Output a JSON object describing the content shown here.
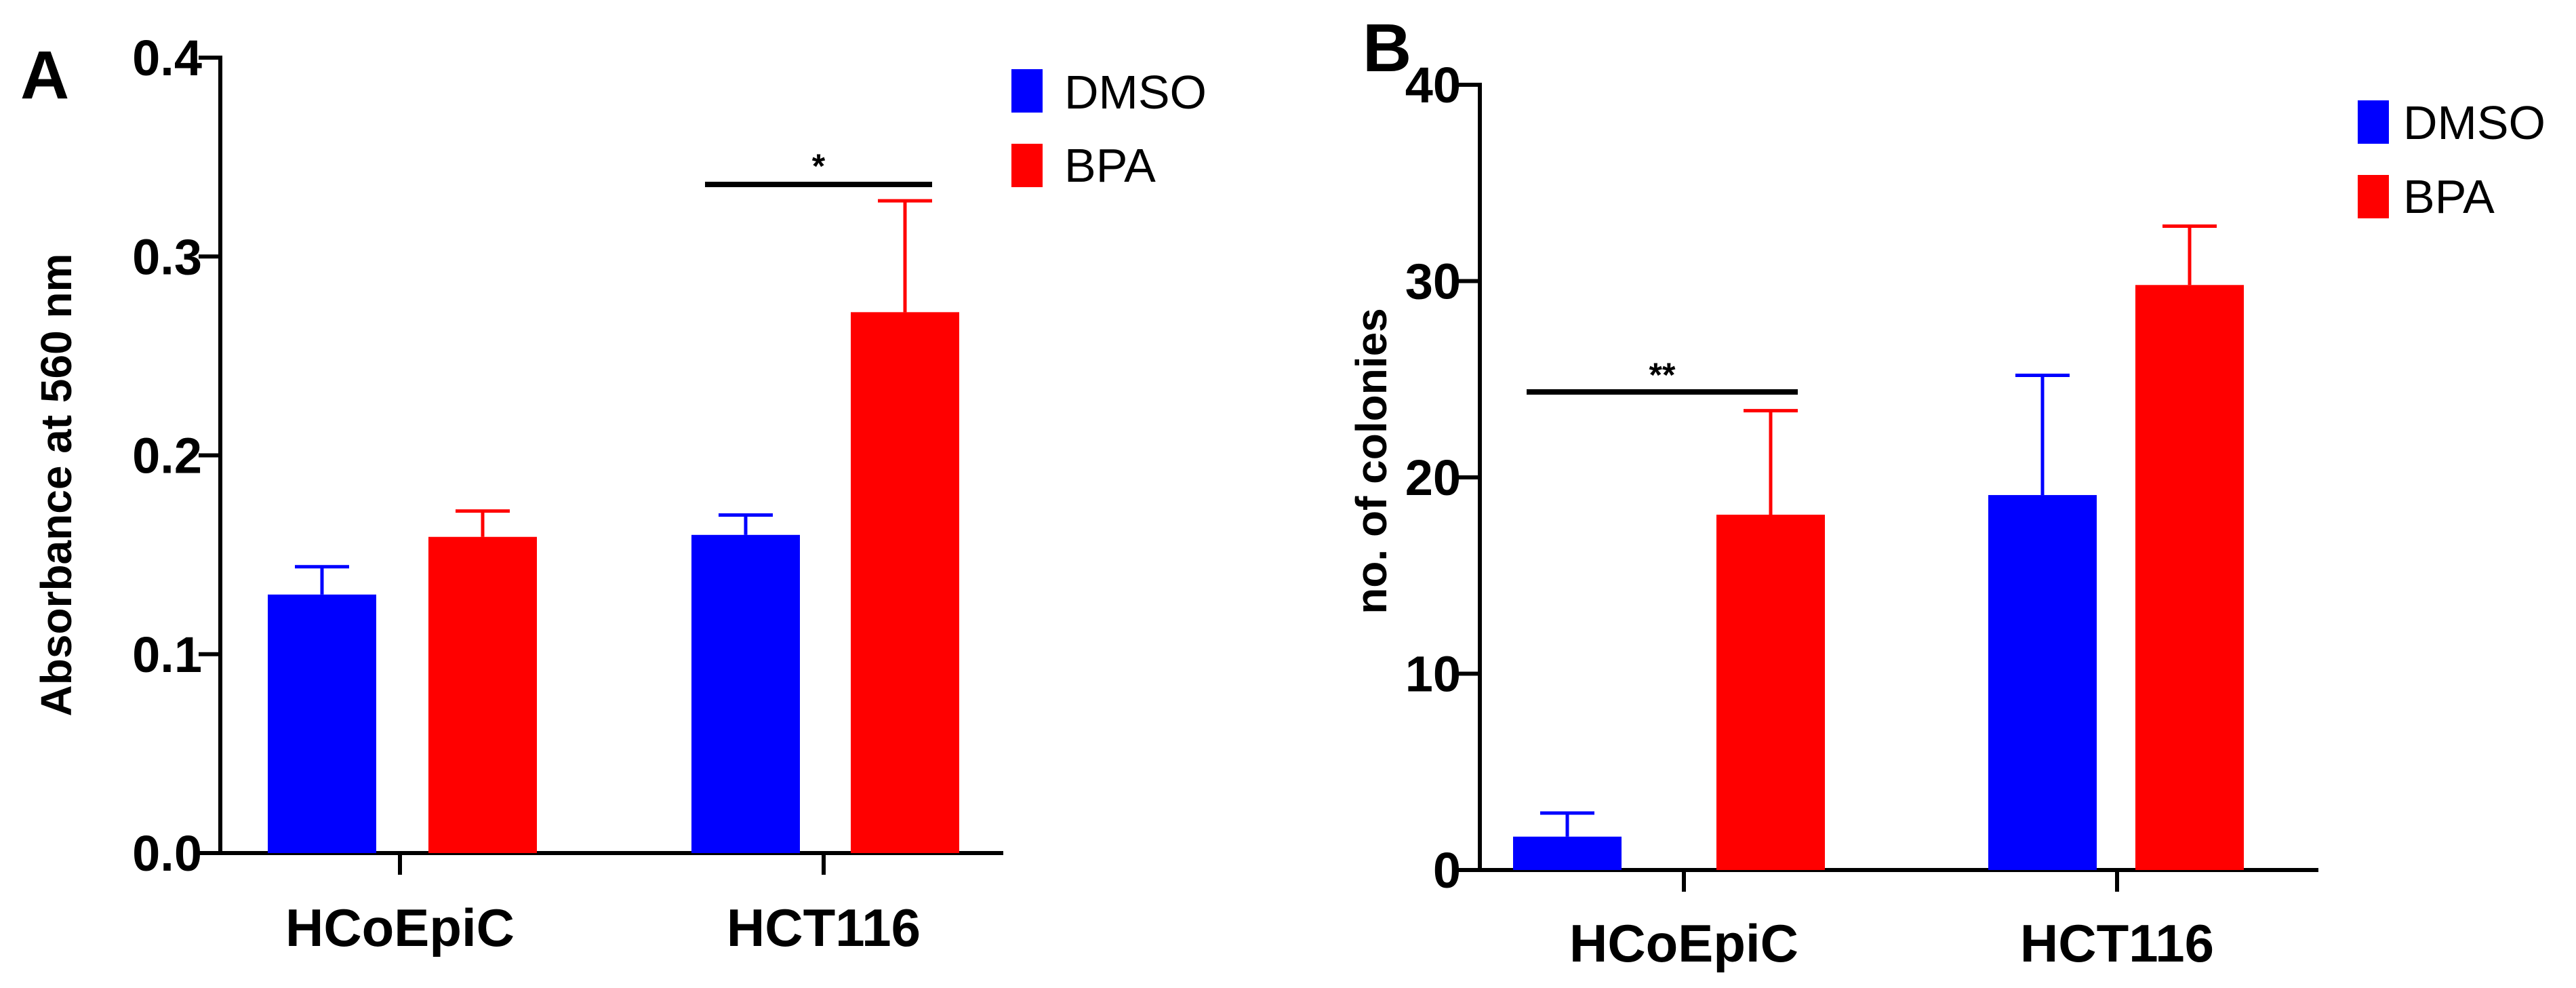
{
  "chart_data": [
    {
      "type": "bar",
      "panel": "A",
      "title": "",
      "xlabel": "",
      "ylabel": "Absorbance at 560 nm",
      "ylim": [
        0,
        0.4
      ],
      "yticks": [
        0.0,
        0.1,
        0.2,
        0.3,
        0.4
      ],
      "ytick_labels": [
        "0.0",
        "0.1",
        "0.2",
        "0.3",
        "0.4"
      ],
      "categories": [
        "HCoEpiC",
        "HCT116"
      ],
      "series": [
        {
          "name": "DMSO",
          "color": "#0000ff",
          "values": [
            0.13,
            0.16
          ],
          "errors": [
            0.014,
            0.01
          ]
        },
        {
          "name": "BPA",
          "color": "#ff0000",
          "values": [
            0.159,
            0.272
          ],
          "errors": [
            0.013,
            0.056
          ]
        }
      ],
      "significance": [
        {
          "category_index": 1,
          "label": "*"
        }
      ],
      "legend": {
        "position": "top-right",
        "entries": [
          "DMSO",
          "BPA"
        ]
      }
    },
    {
      "type": "bar",
      "panel": "B",
      "title": "",
      "xlabel": "",
      "ylabel": "no. of colonies",
      "ylim": [
        0,
        40
      ],
      "yticks": [
        0,
        10,
        20,
        30,
        40
      ],
      "ytick_labels": [
        "0",
        "10",
        "20",
        "30",
        "40"
      ],
      "categories": [
        "HCoEpiC",
        "HCT116"
      ],
      "series": [
        {
          "name": "DMSO",
          "color": "#0000ff",
          "values": [
            1.7,
            19.1
          ],
          "errors": [
            1.2,
            6.1
          ]
        },
        {
          "name": "BPA",
          "color": "#ff0000",
          "values": [
            18.1,
            29.8
          ],
          "errors": [
            5.3,
            3.0
          ]
        }
      ],
      "significance": [
        {
          "category_index": 0,
          "label": "**"
        }
      ],
      "legend": {
        "position": "top-right",
        "entries": [
          "DMSO",
          "BPA"
        ]
      }
    }
  ]
}
